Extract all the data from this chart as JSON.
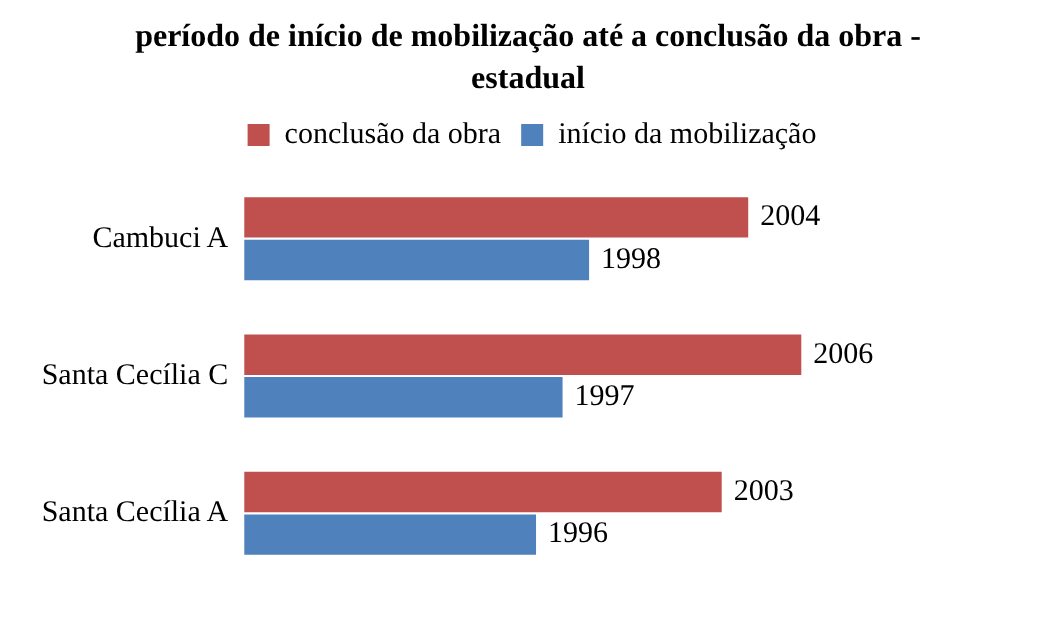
{
  "chart_data": {
    "type": "bar",
    "orientation": "horizontal",
    "title": "período de início de mobilização até a conclusão da obra - estadual",
    "categories": [
      "Cambuci A",
      "Santa Cecília C",
      "Santa Cecília A"
    ],
    "series": [
      {
        "name": "conclusão da obra",
        "color": "#c0504d",
        "values": [
          2004,
          2006,
          2003
        ]
      },
      {
        "name": "início da mobilização",
        "color": "#4f81bd",
        "values": [
          1998,
          1997,
          1996
        ]
      }
    ],
    "tick_labels": "y",
    "grid": false,
    "legend": "top",
    "data_labels": true
  }
}
